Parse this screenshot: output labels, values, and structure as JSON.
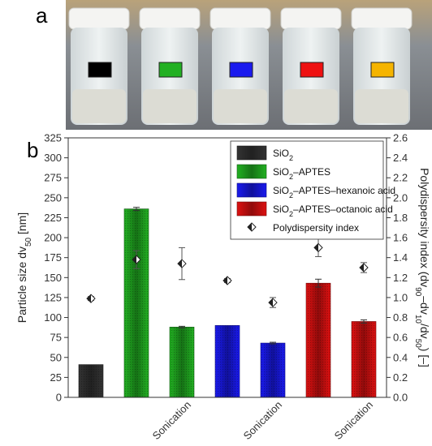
{
  "panel_a": {
    "label": "a",
    "vials": [
      {
        "color": "#000000"
      },
      {
        "color": "#22b022"
      },
      {
        "color": "#1a1aee"
      },
      {
        "color": "#ee1111"
      },
      {
        "color": "#f5b400"
      }
    ]
  },
  "panel_b": {
    "label": "b"
  },
  "chart_data": {
    "type": "bar",
    "categories": [
      "",
      "",
      "Sonication",
      "",
      "Sonication",
      "",
      "Sonication"
    ],
    "series": [
      {
        "name": "SiO2",
        "color": "#333333",
        "values": [
          41,
          null,
          null,
          null,
          null,
          null,
          null
        ]
      },
      {
        "name": "SiO2–APTES",
        "color": "#22b022",
        "values": [
          null,
          236,
          88,
          null,
          null,
          null,
          null
        ]
      },
      {
        "name": "SiO2–APTES–hexanoic acid",
        "color": "#1a1aee",
        "values": [
          null,
          null,
          null,
          90,
          68,
          null,
          null
        ]
      },
      {
        "name": "SiO2–APTES–octanoic acid",
        "color": "#dd1111",
        "values": [
          null,
          null,
          null,
          null,
          null,
          143,
          95
        ]
      }
    ],
    "bar_values": [
      41,
      236,
      88,
      90,
      68,
      143,
      95
    ],
    "bar_colors": [
      "#333333",
      "#22b022",
      "#22b022",
      "#1a1aee",
      "#1a1aee",
      "#dd1111",
      "#dd1111"
    ],
    "bar_errors": [
      0,
      2,
      1,
      0,
      1,
      5,
      2
    ],
    "pdi": {
      "name": "Polydispersity index",
      "values": [
        0.99,
        1.38,
        1.34,
        1.17,
        0.95,
        1.5,
        1.3
      ],
      "errors": [
        0.02,
        0.09,
        0.16,
        0.02,
        0.05,
        0.09,
        0.05
      ]
    },
    "yticks_left": [
      "0",
      "25",
      "50",
      "75",
      "100",
      "125",
      "150",
      "175",
      "200",
      "225",
      "250",
      "275",
      "300",
      "325"
    ],
    "yticks_right": [
      "0.0",
      "0.2",
      "0.4",
      "0.6",
      "0.8",
      "1.0",
      "1.2",
      "1.4",
      "1.6",
      "1.8",
      "2.0",
      "2.2",
      "2.4",
      "2.6"
    ],
    "ylim": [
      0,
      325
    ],
    "y2lim": [
      0,
      2.6
    ],
    "legend": [
      "SiO2",
      "SiO2–APTES",
      "SiO2–APTES–hexanoic acid",
      "SiO2–APTES–octanoic acid",
      "Polydispersity index"
    ],
    "legend_position": "top-right",
    "ylabel": "Particle size dv50 [nm]",
    "y2label": "Polydispersity index (dv90–dv10/dv50) [–]"
  }
}
